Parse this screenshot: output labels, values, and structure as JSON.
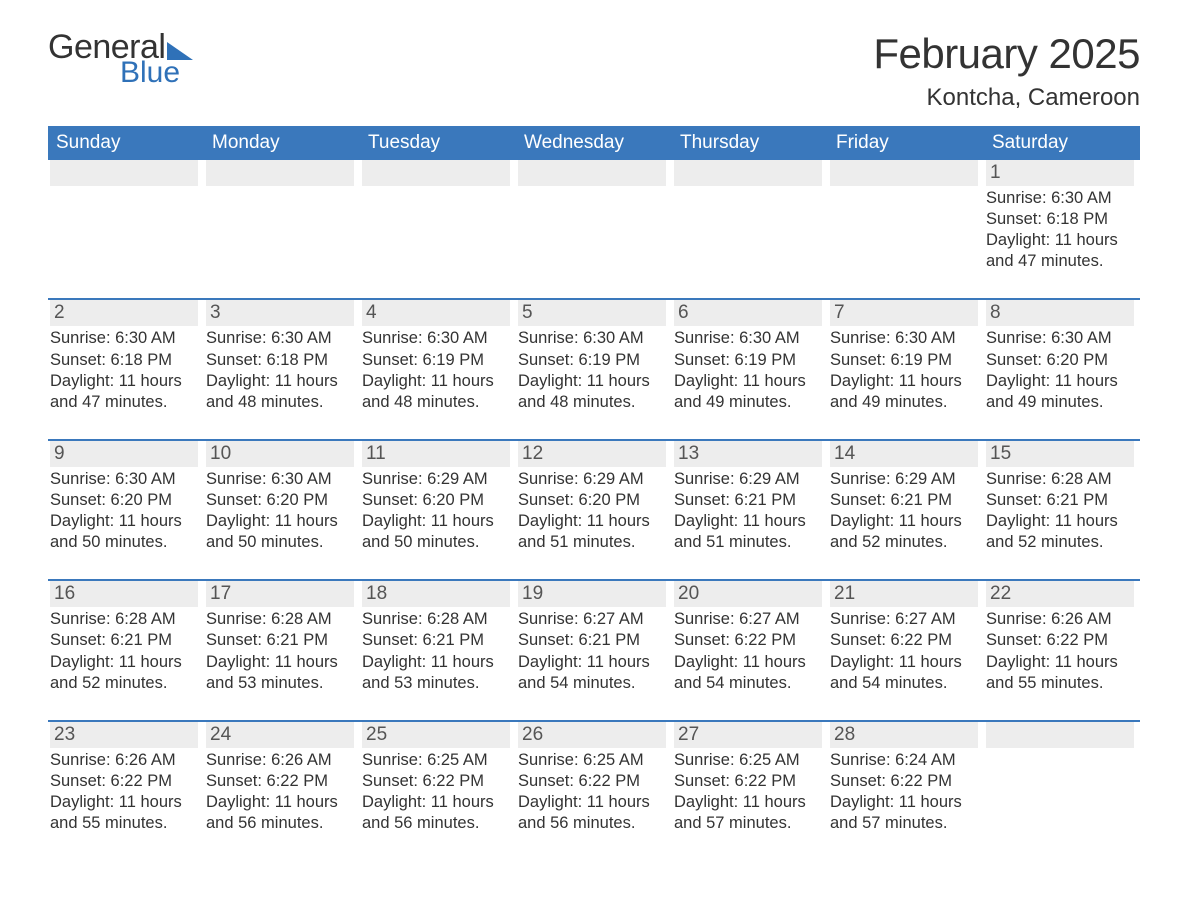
{
  "logo": {
    "word1": "General",
    "word2": "Blue",
    "accent": "#2f71b8"
  },
  "title": "February 2025",
  "location": "Kontcha, Cameroon",
  "colors": {
    "header_bg": "#3a78bc",
    "header_text": "#ffffff",
    "daynum_bg": "#ededed",
    "text": "#333333",
    "rule": "#3a78bc",
    "background": "#ffffff"
  },
  "dow": [
    "Sunday",
    "Monday",
    "Tuesday",
    "Wednesday",
    "Thursday",
    "Friday",
    "Saturday"
  ],
  "weeks": [
    [
      {
        "n": null
      },
      {
        "n": null
      },
      {
        "n": null
      },
      {
        "n": null
      },
      {
        "n": null
      },
      {
        "n": null
      },
      {
        "n": 1,
        "sunrise": "6:30 AM",
        "sunset": "6:18 PM",
        "daylight": "11 hours and 47 minutes."
      }
    ],
    [
      {
        "n": 2,
        "sunrise": "6:30 AM",
        "sunset": "6:18 PM",
        "daylight": "11 hours and 47 minutes."
      },
      {
        "n": 3,
        "sunrise": "6:30 AM",
        "sunset": "6:18 PM",
        "daylight": "11 hours and 48 minutes."
      },
      {
        "n": 4,
        "sunrise": "6:30 AM",
        "sunset": "6:19 PM",
        "daylight": "11 hours and 48 minutes."
      },
      {
        "n": 5,
        "sunrise": "6:30 AM",
        "sunset": "6:19 PM",
        "daylight": "11 hours and 48 minutes."
      },
      {
        "n": 6,
        "sunrise": "6:30 AM",
        "sunset": "6:19 PM",
        "daylight": "11 hours and 49 minutes."
      },
      {
        "n": 7,
        "sunrise": "6:30 AM",
        "sunset": "6:19 PM",
        "daylight": "11 hours and 49 minutes."
      },
      {
        "n": 8,
        "sunrise": "6:30 AM",
        "sunset": "6:20 PM",
        "daylight": "11 hours and 49 minutes."
      }
    ],
    [
      {
        "n": 9,
        "sunrise": "6:30 AM",
        "sunset": "6:20 PM",
        "daylight": "11 hours and 50 minutes."
      },
      {
        "n": 10,
        "sunrise": "6:30 AM",
        "sunset": "6:20 PM",
        "daylight": "11 hours and 50 minutes."
      },
      {
        "n": 11,
        "sunrise": "6:29 AM",
        "sunset": "6:20 PM",
        "daylight": "11 hours and 50 minutes."
      },
      {
        "n": 12,
        "sunrise": "6:29 AM",
        "sunset": "6:20 PM",
        "daylight": "11 hours and 51 minutes."
      },
      {
        "n": 13,
        "sunrise": "6:29 AM",
        "sunset": "6:21 PM",
        "daylight": "11 hours and 51 minutes."
      },
      {
        "n": 14,
        "sunrise": "6:29 AM",
        "sunset": "6:21 PM",
        "daylight": "11 hours and 52 minutes."
      },
      {
        "n": 15,
        "sunrise": "6:28 AM",
        "sunset": "6:21 PM",
        "daylight": "11 hours and 52 minutes."
      }
    ],
    [
      {
        "n": 16,
        "sunrise": "6:28 AM",
        "sunset": "6:21 PM",
        "daylight": "11 hours and 52 minutes."
      },
      {
        "n": 17,
        "sunrise": "6:28 AM",
        "sunset": "6:21 PM",
        "daylight": "11 hours and 53 minutes."
      },
      {
        "n": 18,
        "sunrise": "6:28 AM",
        "sunset": "6:21 PM",
        "daylight": "11 hours and 53 minutes."
      },
      {
        "n": 19,
        "sunrise": "6:27 AM",
        "sunset": "6:21 PM",
        "daylight": "11 hours and 54 minutes."
      },
      {
        "n": 20,
        "sunrise": "6:27 AM",
        "sunset": "6:22 PM",
        "daylight": "11 hours and 54 minutes."
      },
      {
        "n": 21,
        "sunrise": "6:27 AM",
        "sunset": "6:22 PM",
        "daylight": "11 hours and 54 minutes."
      },
      {
        "n": 22,
        "sunrise": "6:26 AM",
        "sunset": "6:22 PM",
        "daylight": "11 hours and 55 minutes."
      }
    ],
    [
      {
        "n": 23,
        "sunrise": "6:26 AM",
        "sunset": "6:22 PM",
        "daylight": "11 hours and 55 minutes."
      },
      {
        "n": 24,
        "sunrise": "6:26 AM",
        "sunset": "6:22 PM",
        "daylight": "11 hours and 56 minutes."
      },
      {
        "n": 25,
        "sunrise": "6:25 AM",
        "sunset": "6:22 PM",
        "daylight": "11 hours and 56 minutes."
      },
      {
        "n": 26,
        "sunrise": "6:25 AM",
        "sunset": "6:22 PM",
        "daylight": "11 hours and 56 minutes."
      },
      {
        "n": 27,
        "sunrise": "6:25 AM",
        "sunset": "6:22 PM",
        "daylight": "11 hours and 57 minutes."
      },
      {
        "n": 28,
        "sunrise": "6:24 AM",
        "sunset": "6:22 PM",
        "daylight": "11 hours and 57 minutes."
      },
      {
        "n": null
      }
    ]
  ],
  "labels": {
    "sunrise": "Sunrise: ",
    "sunset": "Sunset: ",
    "daylight": "Daylight: "
  }
}
